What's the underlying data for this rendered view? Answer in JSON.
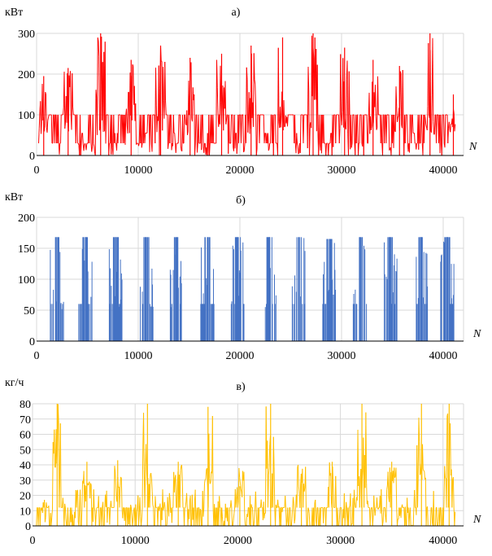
{
  "chart_data": [
    {
      "type": "line",
      "title": "а)",
      "ylabel": "кВт",
      "xlabel": "N",
      "xlim": [
        0,
        42000
      ],
      "ylim": [
        0,
        300
      ],
      "x_ticks": [
        0,
        10000,
        20000,
        30000,
        40000
      ],
      "y_ticks": [
        0,
        100,
        200,
        300
      ],
      "grid": "vertical+horizontal",
      "series": [
        {
          "color": "#ff0000",
          "peaks": [
            {
              "x": 700,
              "v": 195
            },
            {
              "x": 3100,
              "v": 215
            },
            {
              "x": 6300,
              "v": 300
            },
            {
              "x": 9300,
              "v": 235
            },
            {
              "x": 12200,
              "v": 270
            },
            {
              "x": 15100,
              "v": 240
            },
            {
              "x": 18200,
              "v": 250
            },
            {
              "x": 21100,
              "v": 270
            },
            {
              "x": 24200,
              "v": 290
            },
            {
              "x": 27200,
              "v": 300
            },
            {
              "x": 30300,
              "v": 265
            },
            {
              "x": 33100,
              "v": 235
            },
            {
              "x": 35700,
              "v": 220
            },
            {
              "x": 38700,
              "v": 300
            },
            {
              "x": 41000,
              "v": 150
            }
          ],
          "plateau": 100,
          "base": 30
        }
      ]
    },
    {
      "type": "line",
      "title": "б)",
      "ylabel": "кВт",
      "xlabel": "N",
      "xlim": [
        0,
        42000
      ],
      "ylim": [
        0,
        200
      ],
      "x_ticks": [
        0,
        10000,
        20000,
        30000,
        40000
      ],
      "y_ticks": [
        0,
        50,
        100,
        150,
        200
      ],
      "grid": "vertical+horizontal",
      "series": [
        {
          "color": "#4472c4",
          "blocks": [
            {
              "x": 2000,
              "v": 168
            },
            {
              "x": 4800,
              "v": 168
            },
            {
              "x": 7800,
              "v": 168
            },
            {
              "x": 10800,
              "v": 168
            },
            {
              "x": 13700,
              "v": 168
            },
            {
              "x": 16800,
              "v": 168
            },
            {
              "x": 19800,
              "v": 168
            },
            {
              "x": 22900,
              "v": 168
            },
            {
              "x": 25800,
              "v": 168
            },
            {
              "x": 28800,
              "v": 165
            },
            {
              "x": 31800,
              "v": 168
            },
            {
              "x": 34800,
              "v": 168
            },
            {
              "x": 37800,
              "v": 168
            },
            {
              "x": 40400,
              "v": 168
            }
          ]
        }
      ]
    },
    {
      "type": "line",
      "title": "в)",
      "ylabel": "кг/ч",
      "xlabel": "N",
      "xlim": [
        0,
        42000
      ],
      "ylim": [
        0,
        80
      ],
      "x_ticks": [
        0,
        10000,
        20000,
        30000,
        40000
      ],
      "y_ticks": [
        0,
        10,
        20,
        30,
        40,
        50,
        60,
        70,
        80
      ],
      "grid": "vertical+horizontal",
      "series": [
        {
          "color": "#ffc000",
          "peaks": [
            {
              "x": 2400,
              "v": 80
            },
            {
              "x": 5300,
              "v": 42
            },
            {
              "x": 8300,
              "v": 43
            },
            {
              "x": 11200,
              "v": 80
            },
            {
              "x": 14200,
              "v": 42
            },
            {
              "x": 17100,
              "v": 78
            },
            {
              "x": 20200,
              "v": 26
            },
            {
              "x": 23200,
              "v": 80
            },
            {
              "x": 26200,
              "v": 34
            },
            {
              "x": 29200,
              "v": 42
            },
            {
              "x": 32100,
              "v": 80
            },
            {
              "x": 35000,
              "v": 42
            },
            {
              "x": 37900,
              "v": 80
            },
            {
              "x": 40600,
              "v": 80
            }
          ],
          "base": 12
        }
      ]
    }
  ]
}
